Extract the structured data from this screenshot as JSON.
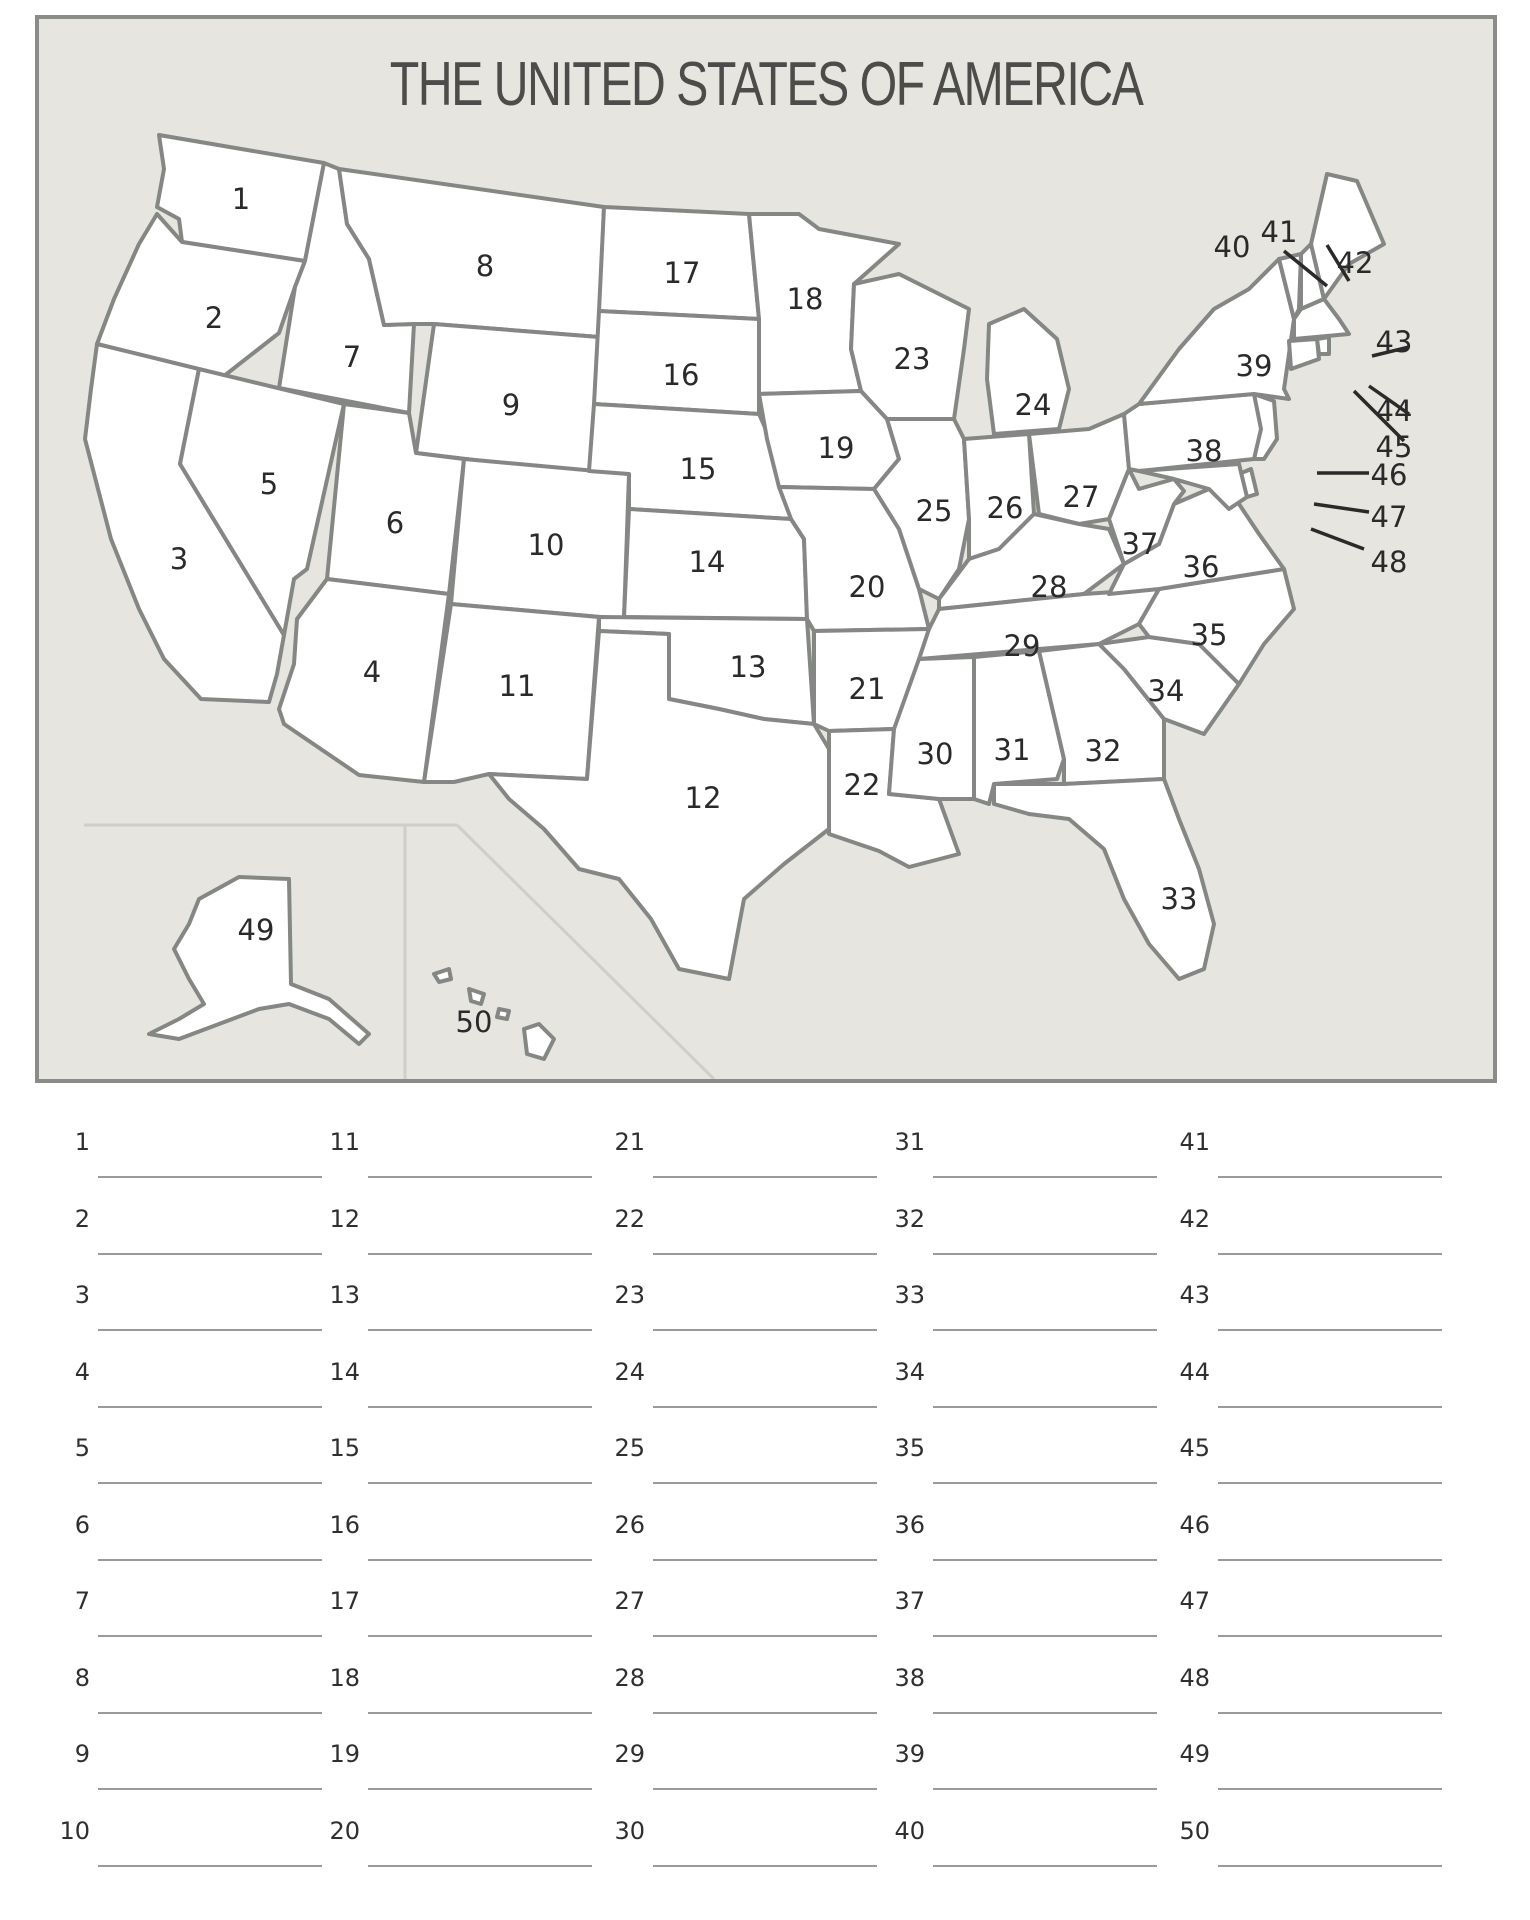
{
  "title": "THE UNITED STATES OF AMERICA",
  "map_labels": [
    "1",
    "2",
    "3",
    "4",
    "5",
    "6",
    "7",
    "8",
    "9",
    "10",
    "11",
    "12",
    "13",
    "14",
    "15",
    "16",
    "17",
    "18",
    "19",
    "20",
    "21",
    "22",
    "23",
    "24",
    "25",
    "26",
    "27",
    "28",
    "29",
    "30",
    "31",
    "32",
    "33",
    "34",
    "35",
    "36",
    "37",
    "38",
    "39",
    "40",
    "41",
    "42",
    "43",
    "44",
    "45",
    "46",
    "47",
    "48",
    "49",
    "50"
  ],
  "answer_numbers": [
    "1",
    "2",
    "3",
    "4",
    "5",
    "6",
    "7",
    "8",
    "9",
    "10",
    "11",
    "12",
    "13",
    "14",
    "15",
    "16",
    "17",
    "18",
    "19",
    "20",
    "21",
    "22",
    "23",
    "24",
    "25",
    "26",
    "27",
    "28",
    "29",
    "30",
    "31",
    "32",
    "33",
    "34",
    "35",
    "36",
    "37",
    "38",
    "39",
    "40",
    "41",
    "42",
    "43",
    "44",
    "45",
    "46",
    "47",
    "48",
    "49",
    "50"
  ],
  "colors": {
    "panel_bg": "#e6e5df",
    "panel_border": "#8a8c88",
    "state_fill": "#ffffff",
    "state_border": "#848784"
  }
}
